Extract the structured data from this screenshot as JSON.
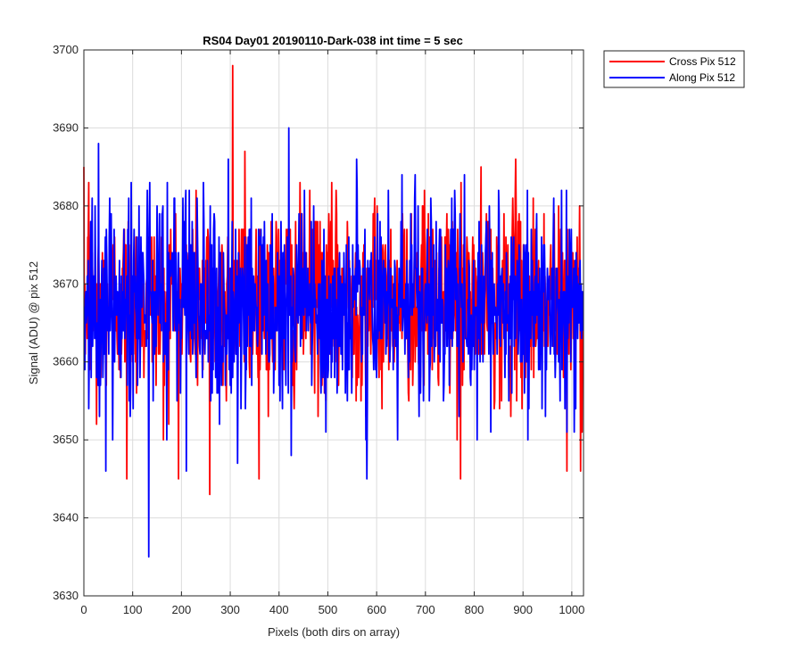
{
  "chart_data": {
    "type": "line",
    "title": "RS04 Day01 20190110-Dark-038 int time = 5 sec",
    "xlabel": "Pixels (both dirs on array)",
    "ylabel": "Signal (ADU) @ pix 512",
    "xlim": [
      0,
      1024
    ],
    "ylim": [
      3630,
      3700
    ],
    "xticks": [
      0,
      100,
      200,
      300,
      400,
      500,
      600,
      700,
      800,
      900,
      1000
    ],
    "yticks": [
      3630,
      3640,
      3650,
      3660,
      3670,
      3680,
      3690,
      3700
    ],
    "grid": true,
    "legend_position": "outside-top-right",
    "series": [
      {
        "name": "Cross Pix 512",
        "color": "#ff0000",
        "samples": 1024,
        "mean": 3668,
        "min": 3643,
        "max": 3698,
        "notable_points": [
          [
            10,
            3683
          ],
          [
            26,
            3652
          ],
          [
            88,
            3645
          ],
          [
            163,
            3650
          ],
          [
            258,
            3643
          ],
          [
            305,
            3698
          ],
          [
            330,
            3687
          ],
          [
            772,
            3645
          ],
          [
            885,
            3686
          ],
          [
            990,
            3646
          ],
          [
            1018,
            3646
          ]
        ]
      },
      {
        "name": "Along Pix 512",
        "color": "#0000ff",
        "samples": 1024,
        "mean": 3667,
        "min": 3635,
        "max": 3694,
        "notable_points": [
          [
            30,
            3688
          ],
          [
            45,
            3646
          ],
          [
            133,
            3635
          ],
          [
            210,
            3646
          ],
          [
            315,
            3647
          ],
          [
            420,
            3690
          ],
          [
            580,
            3645
          ],
          [
            910,
            3650
          ],
          [
            1005,
            3651
          ]
        ]
      }
    ]
  }
}
